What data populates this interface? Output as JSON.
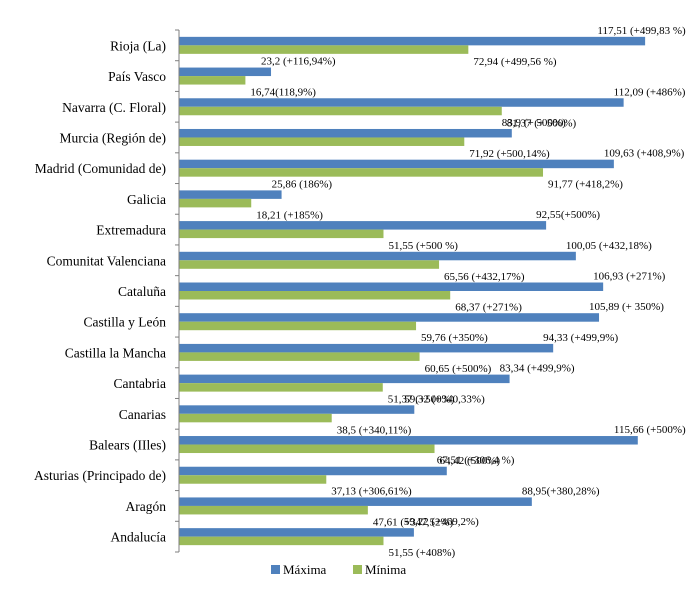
{
  "chart_data": {
    "type": "bar",
    "orientation": "horizontal",
    "xlim": [
      0,
      120
    ],
    "grid": false,
    "legend_position": "bottom",
    "categories": [
      "Rioja (La)",
      "País Vasco",
      "Navarra (C. Floral)",
      "Murcia (Región de)",
      "Madrid (Comunidad de)",
      "Galicia",
      "Extremadura",
      "Comunitat Valenciana",
      "Cataluña",
      "Castilla y León",
      "Castilla la Mancha",
      "Cantabria",
      "Canarias",
      "Balears (IIles)",
      "Asturias (Principado de)",
      "Aragón",
      "Andalucía"
    ],
    "series": [
      {
        "name": "Máxima",
        "color": "#4f81bd",
        "values": [
          117.51,
          23.2,
          112.09,
          83.9,
          109.63,
          25.86,
          92.55,
          100.05,
          106.93,
          105.89,
          94.33,
          83.34,
          59.32,
          115.66,
          67.51,
          88.95,
          59.22
        ],
        "labels": [
          "117,51 (+499,83 %)",
          "23,2 (+116,94%)",
          "112,09 (+486%)",
          "83,9 (+ 500%)",
          "109,63 (+408,9%)",
          "25,86 (186%)",
          "92,55(+500%)",
          "100,05 (+432,18%)",
          "106,93 (+271%)",
          "105,89 (+ 350%)",
          "94,33 (+499,9%)",
          "83,34 (+499,9%)",
          "59,32 (+340,33%)",
          "115,66 (+500%)",
          "67,51 (+306,4 %)",
          "88,95(+380,28%)",
          "59,22 (+469,2%)"
        ]
      },
      {
        "name": "Mínima",
        "color": "#9bbb59",
        "values": [
          72.94,
          16.74,
          81.37,
          71.92,
          91.77,
          18.21,
          51.55,
          65.56,
          68.37,
          59.76,
          60.65,
          51.37,
          38.5,
          64.42,
          37.13,
          47.61,
          51.55
        ],
        "labels": [
          "72,94 (+499,56 %)",
          "16,74(118,9%)",
          "81,37 (+ 500%)",
          "71,92 (+500,14%)",
          "91,77 (+418,2%)",
          "18,21 (+185%)",
          "51,55 (+500 %)",
          "65,56 (+432,17%)",
          "68,37 (+271%)",
          "59,76 (+350%)",
          "60,65 (+500%)",
          "51,37 (+500%)",
          "38,5 (+340,11%)",
          "64,42 (500%)",
          "37,13 (+306,61%)",
          "47,61 (+347,52%)",
          "51,55 (+408%)"
        ]
      }
    ]
  }
}
